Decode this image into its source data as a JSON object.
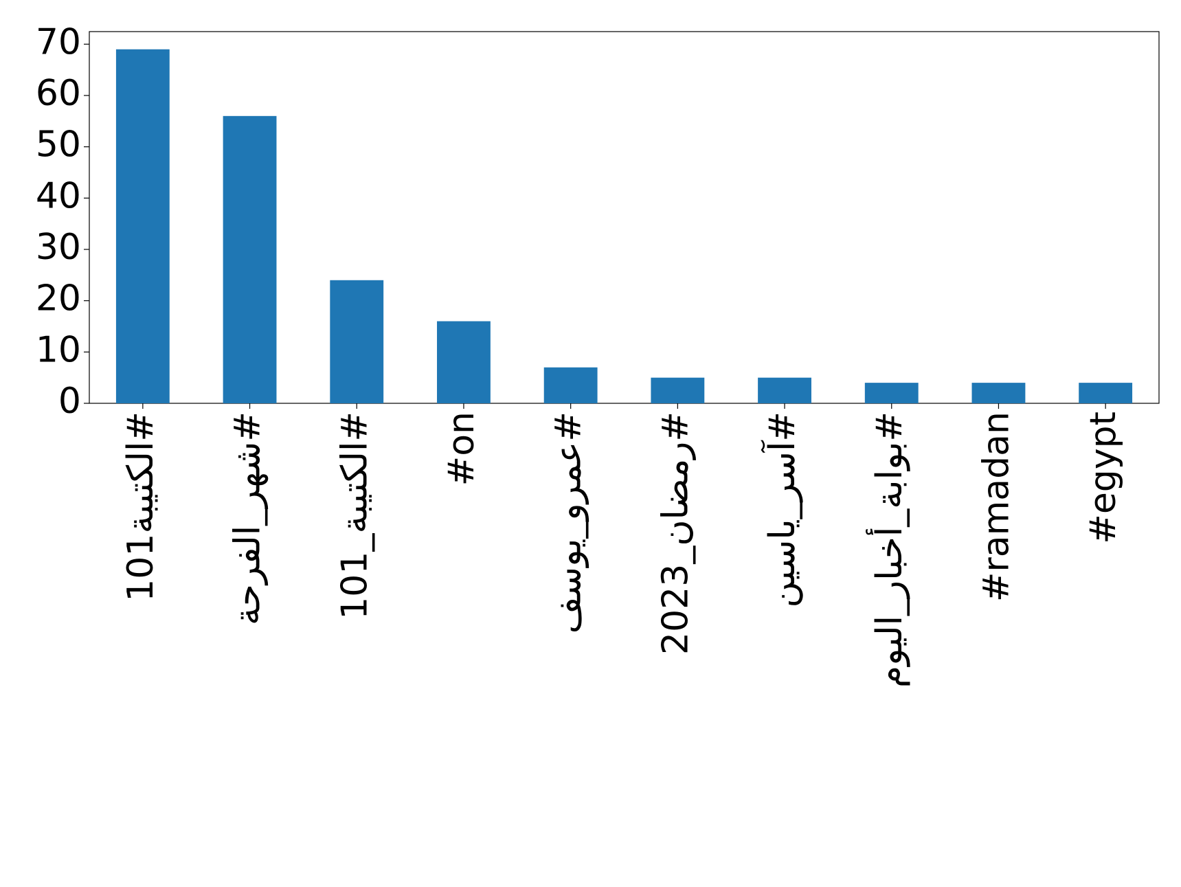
{
  "chart_data": {
    "type": "bar",
    "categories": [
      "#الكتيبة101",
      "#شهر_الفرحة",
      "#الكتيبة_101",
      "#on",
      "#عمرو_يوسف",
      "#رمضان_2023",
      "#آسر_ياسين",
      "#بوابة_أخبار_اليوم",
      "#ramadan",
      "#egypt"
    ],
    "values": [
      69,
      56,
      24,
      16,
      7,
      5,
      5,
      4,
      4,
      4
    ],
    "color": "#1f77b4",
    "ylim": [
      0,
      72.45
    ],
    "yticks": [
      0,
      10,
      20,
      30,
      40,
      50,
      60,
      70
    ],
    "grid": false
  }
}
